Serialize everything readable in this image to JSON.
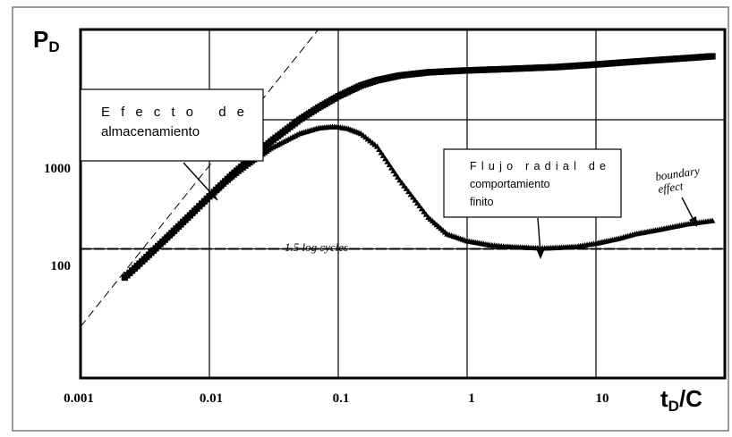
{
  "chart_data": {
    "type": "scatter",
    "scale": {
      "x": "log",
      "y": "log"
    },
    "xlim": [
      0.001,
      100
    ],
    "ylim": [
      10,
      5000
    ],
    "grid": true,
    "y_title": {
      "main": "P",
      "sub": "D"
    },
    "x_title": {
      "main": "t",
      "sub": "D",
      "tail": "/C"
    },
    "x_ticks": [
      {
        "value": 0.001,
        "label": "0.001"
      },
      {
        "value": 0.01,
        "label": "0.01"
      },
      {
        "value": 0.1,
        "label": "0.1"
      },
      {
        "value": 1,
        "label": "1"
      },
      {
        "value": 10,
        "label": "10"
      }
    ],
    "y_ticks": [
      {
        "value": 1000,
        "label": "1000"
      },
      {
        "value": 100,
        "label": "100"
      }
    ],
    "series": [
      {
        "marker": "square",
        "x": [
          0.0022,
          0.003,
          0.004,
          0.006,
          0.008,
          0.01,
          0.015,
          0.02,
          0.03,
          0.05,
          0.07,
          0.1,
          0.15,
          0.2,
          0.3,
          0.5,
          0.7,
          1,
          2,
          5,
          10,
          20,
          50,
          80
        ],
        "y": [
          60,
          80,
          105,
          155,
          205,
          255,
          375,
          480,
          680,
          1000,
          1240,
          1520,
          1840,
          2020,
          2200,
          2330,
          2370,
          2410,
          2470,
          2560,
          2680,
          2820,
          3000,
          3100
        ]
      },
      {
        "marker": "triangle",
        "x": [
          0.0022,
          0.003,
          0.004,
          0.006,
          0.008,
          0.01,
          0.015,
          0.02,
          0.03,
          0.05,
          0.07,
          0.09,
          0.1,
          0.12,
          0.15,
          0.2,
          0.3,
          0.5,
          0.7,
          1,
          1.5,
          2,
          3,
          4,
          5,
          7,
          10,
          15,
          20,
          30,
          50,
          80
        ],
        "y": [
          60,
          80,
          105,
          155,
          205,
          255,
          360,
          450,
          600,
          780,
          860,
          880,
          875,
          850,
          780,
          620,
          340,
          175,
          130,
          115,
          107,
          104,
          102,
          101,
          102,
          104,
          110,
          120,
          130,
          140,
          155,
          165
        ]
      }
    ],
    "reference_lines": [
      {
        "type": "slope",
        "x": [
          0.001,
          0.07
        ],
        "y": [
          25,
          5000
        ]
      },
      {
        "type": "horizontal",
        "y": 100
      }
    ],
    "annotations": [
      {
        "lines": [
          "Efecto de",
          "almacenamiento"
        ]
      },
      {
        "lines": [
          "Flujo radial de",
          "comportamiento",
          "finito"
        ]
      },
      {
        "text": "1.5 log cycles"
      },
      {
        "lines": [
          "boundary",
          "effect"
        ]
      }
    ]
  }
}
